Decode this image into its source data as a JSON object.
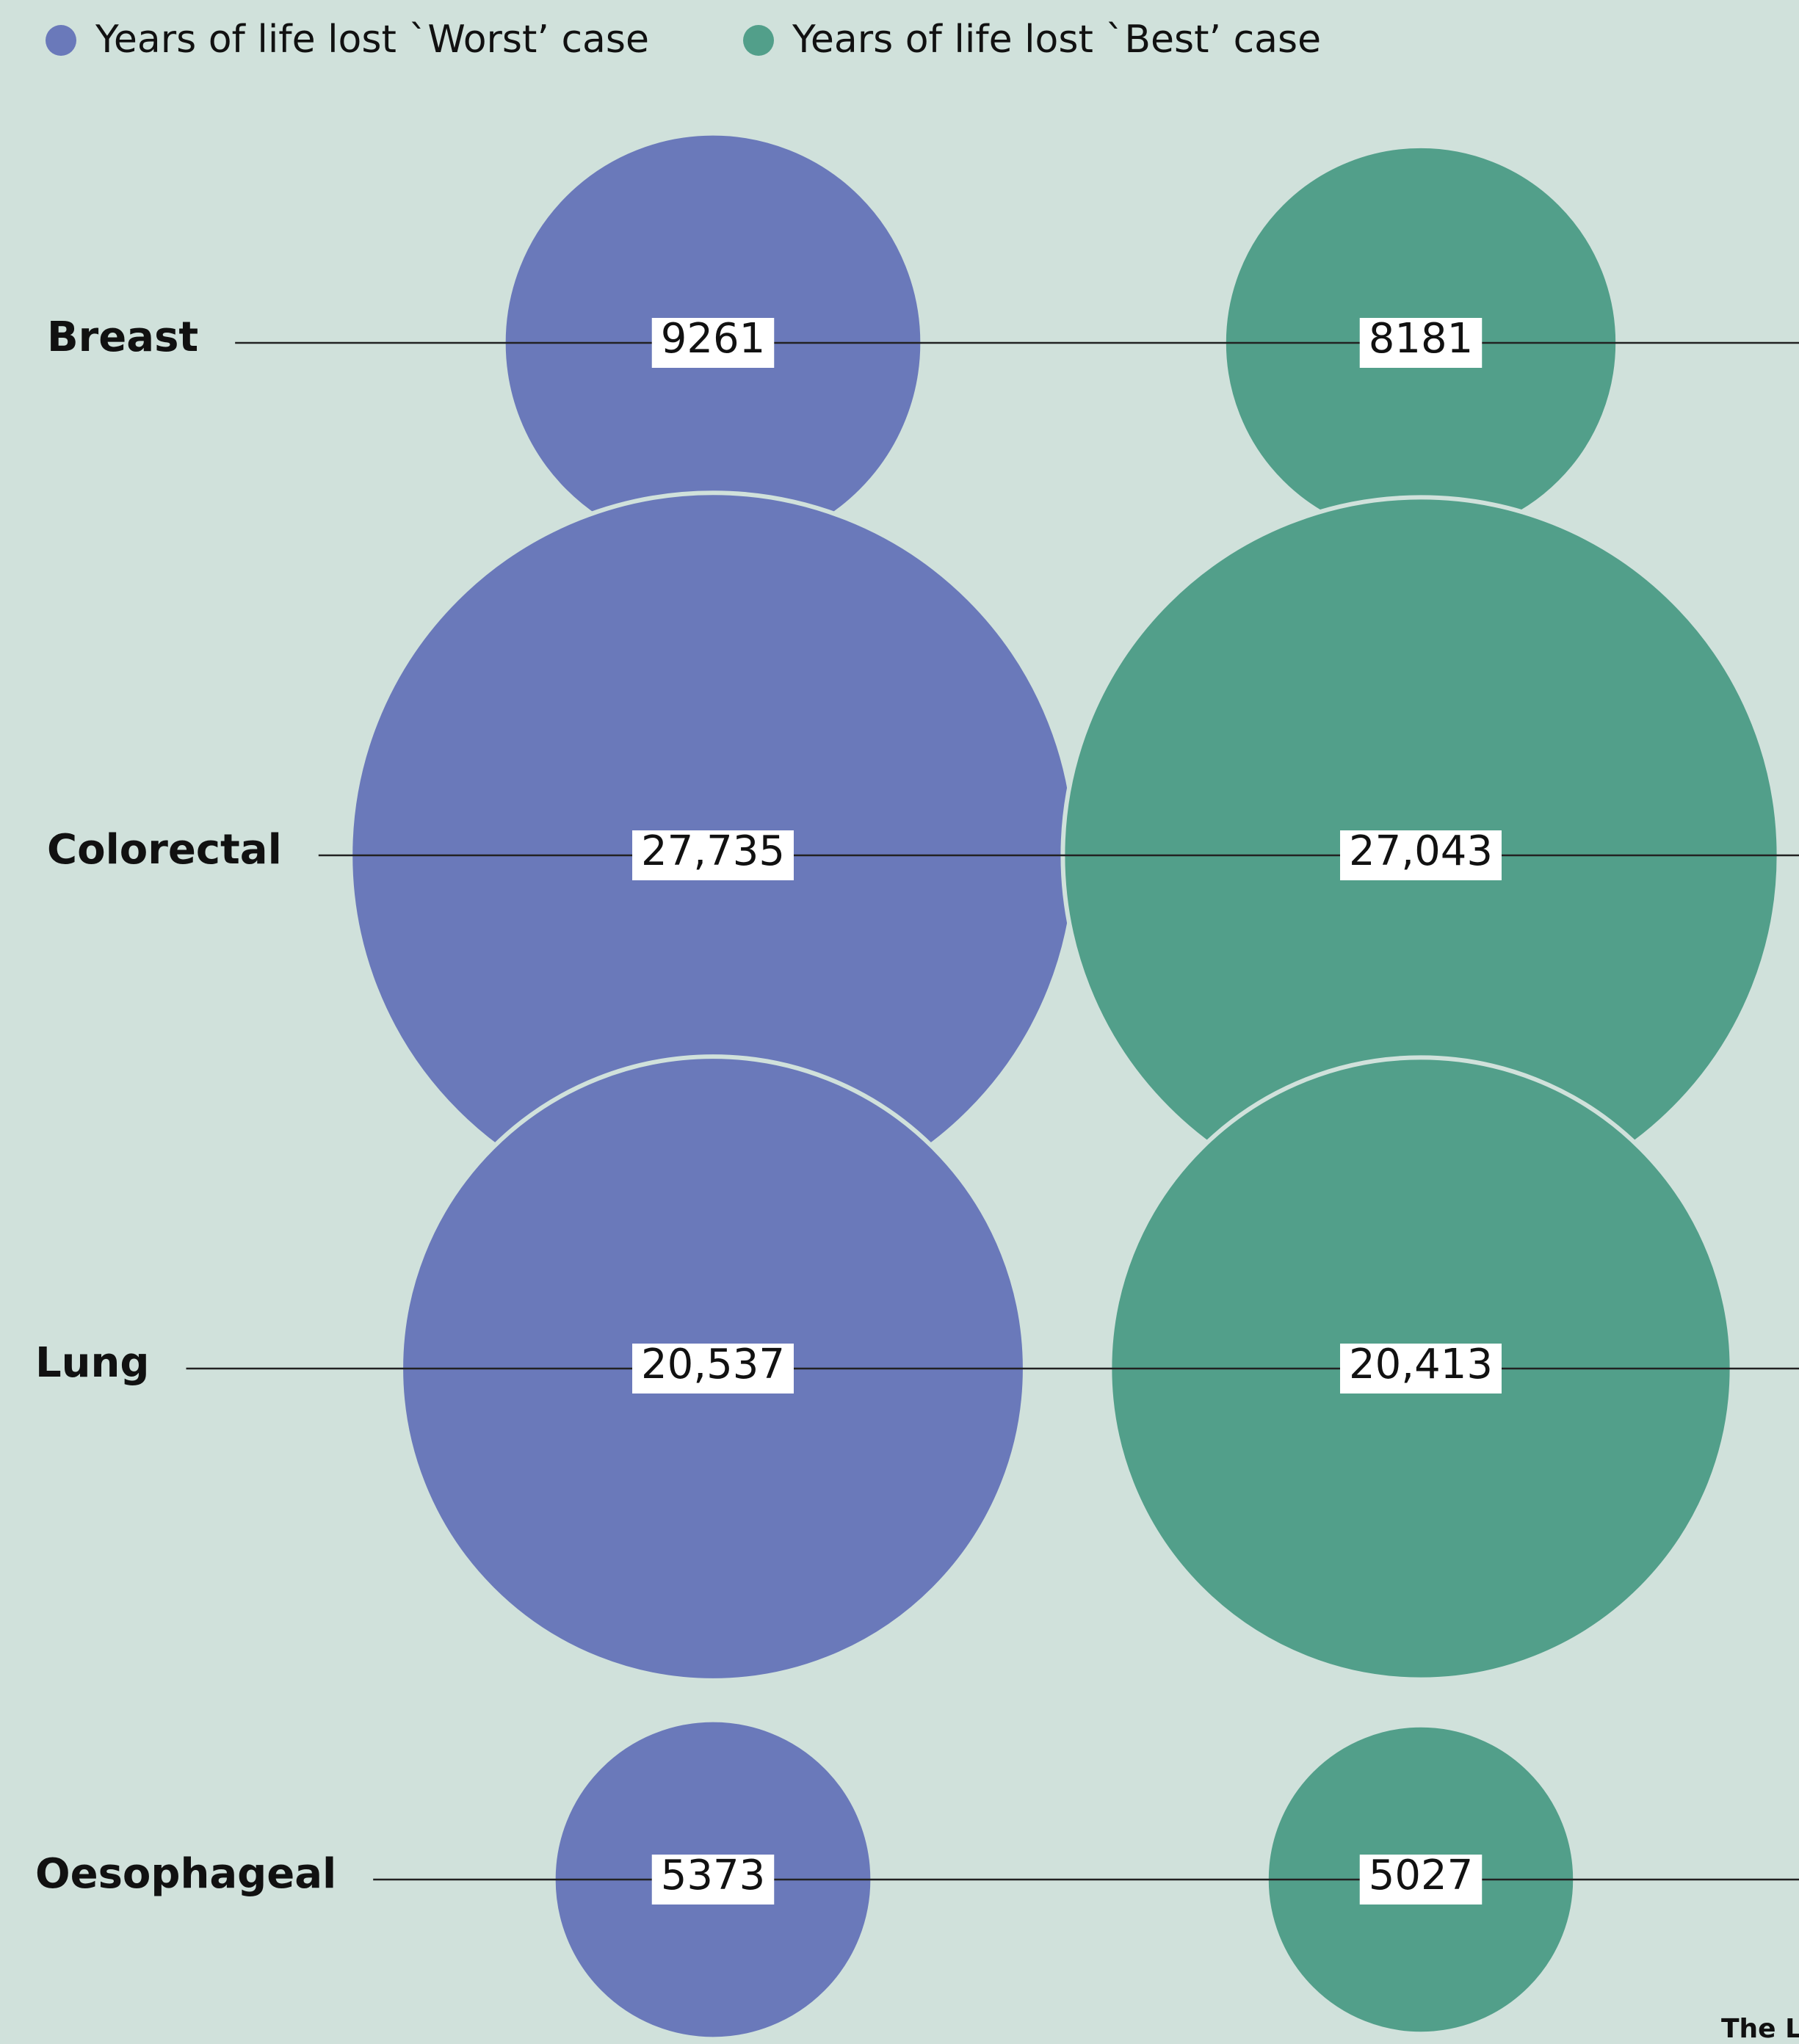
{
  "chart_data": {
    "type": "bubble",
    "categories": [
      "Breast",
      "Colorectal",
      "Lung",
      "Oesophageal"
    ],
    "series": [
      {
        "name": "Years of life lost `Worst’ case",
        "color": "#6a79ba",
        "values": [
          9261,
          27735,
          20537,
          5373
        ],
        "value_labels": [
          "9261",
          "27,735",
          "20,537",
          "5373"
        ]
      },
      {
        "name": "Years of life lost `Best’ case",
        "color": "#529f8a",
        "values": [
          8181,
          27043,
          20413,
          5027
        ],
        "value_labels": [
          "8181",
          "27,043",
          "20,413",
          "5027"
        ]
      }
    ],
    "legend": "top-left",
    "source": "The L"
  }
}
